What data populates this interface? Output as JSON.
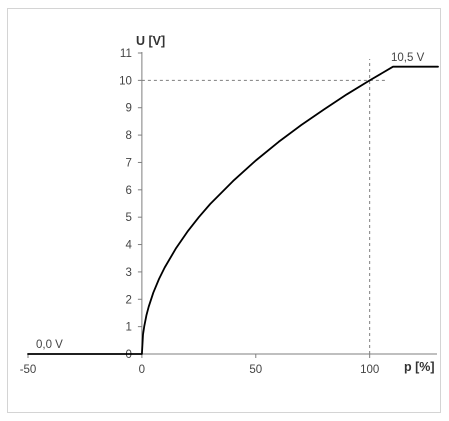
{
  "chart_data": {
    "type": "line",
    "title": "",
    "xlabel": "p [%]",
    "ylabel": "U [V]",
    "xlim": [
      -50,
      130
    ],
    "ylim": [
      0,
      11
    ],
    "x_ticks": [
      -50,
      0,
      50,
      100
    ],
    "y_ticks": [
      0,
      1,
      2,
      3,
      4,
      5,
      6,
      7,
      8,
      9,
      10,
      11
    ],
    "grid": false,
    "series": [
      {
        "x": [
          -50,
          0,
          0.5,
          1,
          2,
          3,
          5,
          7.5,
          10,
          15,
          20,
          25,
          30,
          40,
          50,
          60,
          70,
          80,
          90,
          100,
          110.25,
          130
        ],
        "y": [
          0,
          0,
          0.71,
          1.0,
          1.41,
          1.73,
          2.24,
          2.74,
          3.16,
          3.87,
          4.47,
          5.0,
          5.48,
          6.32,
          7.07,
          7.75,
          8.37,
          8.94,
          9.49,
          10.0,
          10.5,
          10.5
        ]
      }
    ],
    "reference_lines": [
      {
        "axis": "x",
        "value": 100,
        "style": "dashed"
      },
      {
        "axis": "y",
        "value": 10,
        "style": "dashed"
      }
    ],
    "annotations": [
      {
        "text": "0,0 V",
        "x": -50,
        "y": 0
      },
      {
        "text": "10,5 V",
        "x": 130,
        "y": 10.5
      }
    ],
    "colors": {
      "line": "#000000",
      "axis": "#7f7f7f",
      "reference": "#7f7f7f",
      "text": "#444444"
    }
  }
}
